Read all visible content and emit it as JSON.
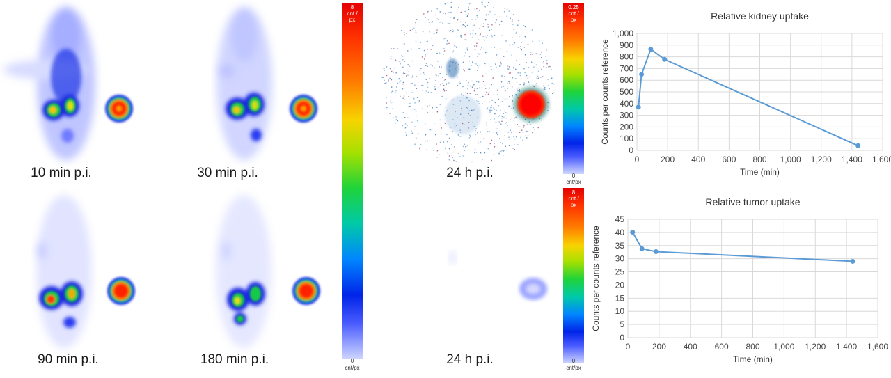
{
  "images": {
    "labels": {
      "p10": "10 min p.i.",
      "p30": "30 min p.i.",
      "p90": "90 min p.i.",
      "p180": "180 min p.i.",
      "p24a": "24 h p.i.",
      "p24b": "24 h p.i."
    }
  },
  "colorbars": {
    "left": {
      "top": "8",
      "mid1": "cnt /",
      "mid2": "px",
      "bottom1": "0",
      "bottom2": "cnt/px"
    },
    "right_top": {
      "top": "0.25",
      "mid1": "cnt /",
      "mid2": "px",
      "bottom1": "0",
      "bottom2": "cnt/px"
    },
    "right_bottom": {
      "top": "8",
      "mid1": "cnt /",
      "mid2": "px",
      "bottom1": "0",
      "bottom2": "cnt/px"
    }
  },
  "colors": {
    "line": "#5b9bd5",
    "grid": "#d9d9d9"
  },
  "chart_data": [
    {
      "type": "line",
      "title": "Relative kidney uptake",
      "xlabel": "Time (min)",
      "ylabel": "Counts per counts reference",
      "xlim": [
        0,
        1600
      ],
      "ylim": [
        0,
        1000
      ],
      "xticks": [
        "0",
        "200",
        "400",
        "600",
        "800",
        "1,000",
        "1,200",
        "1,400",
        "1,600"
      ],
      "yticks": [
        "0",
        "100",
        "200",
        "300",
        "400",
        "500",
        "600",
        "700",
        "800",
        "900",
        "1,000"
      ],
      "grid": true,
      "series": [
        {
          "x": [
            10,
            30,
            90,
            180,
            1440
          ],
          "y": [
            370,
            650,
            865,
            778,
            40
          ]
        }
      ]
    },
    {
      "type": "line",
      "title": "Relative tumor uptake",
      "xlabel": "Time (min)",
      "ylabel": "Counts per counts reference",
      "xlim": [
        0,
        1600
      ],
      "ylim": [
        0,
        45
      ],
      "xticks": [
        "0",
        "200",
        "400",
        "600",
        "800",
        "1,000",
        "1,200",
        "1,400",
        "1,600"
      ],
      "yticks": [
        "0",
        "5",
        "10",
        "15",
        "20",
        "25",
        "30",
        "35",
        "40",
        "45"
      ],
      "grid": true,
      "series": [
        {
          "x": [
            30,
            90,
            180,
            1440
          ],
          "y": [
            40.1,
            33.8,
            32.7,
            29.0
          ]
        }
      ]
    }
  ]
}
